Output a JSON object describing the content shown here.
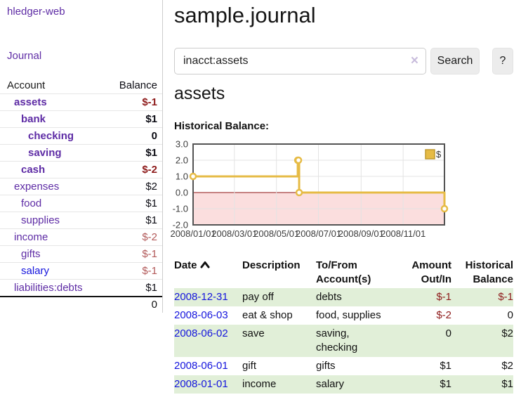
{
  "colors": {
    "link_purple": "#5e2ca5",
    "link_blue": "#1414dd",
    "negative_red": "#8e1b1b",
    "row_green": "#e1efd8",
    "series_gold": "#e6bb45",
    "legend_border_gold": "#bf992f",
    "pink_region": "#fbdede",
    "zero_line": "#8f1515",
    "grid_line": "#e3e3e3",
    "plot_border": "#545454"
  },
  "sidebar": {
    "brand": "hledger-web",
    "journal_link": "Journal",
    "accounts_table": {
      "account_header": "Account",
      "balance_header": "Balance",
      "rows": [
        {
          "name": "assets",
          "balance": "$-1",
          "level": 1,
          "bold": true,
          "negative": true,
          "blue": false
        },
        {
          "name": "bank",
          "balance": "$1",
          "level": 2,
          "bold": true,
          "negative": false,
          "blue": false
        },
        {
          "name": "checking",
          "balance": "0",
          "level": 3,
          "bold": true,
          "negative": false,
          "blue": false
        },
        {
          "name": "saving",
          "balance": "$1",
          "level": 3,
          "bold": true,
          "negative": false,
          "blue": false
        },
        {
          "name": "cash",
          "balance": "$-2",
          "level": 2,
          "bold": true,
          "negative": true,
          "blue": false
        },
        {
          "name": "expenses",
          "balance": "$2",
          "level": 1,
          "bold": false,
          "negative": false,
          "blue": false
        },
        {
          "name": "food",
          "balance": "$1",
          "level": 2,
          "bold": false,
          "negative": false,
          "blue": false
        },
        {
          "name": "supplies",
          "balance": "$1",
          "level": 2,
          "bold": false,
          "negative": false,
          "blue": false
        },
        {
          "name": "income",
          "balance": "$-2",
          "level": 1,
          "bold": false,
          "negative": true,
          "blue": false
        },
        {
          "name": "gifts",
          "balance": "$-1",
          "level": 2,
          "bold": false,
          "negative": true,
          "blue": false
        },
        {
          "name": "salary",
          "balance": "$-1",
          "level": 2,
          "bold": false,
          "negative": true,
          "blue": true
        },
        {
          "name": "liabilities:debts",
          "balance": "$1",
          "level": 1,
          "bold": false,
          "negative": false,
          "blue": false
        }
      ],
      "total": "0"
    }
  },
  "main": {
    "title": "sample.journal",
    "search": {
      "value": "inacct:assets",
      "clear_label": "×",
      "search_button": "Search",
      "help_button": "?"
    },
    "account_title": "assets",
    "chart_heading": "Historical Balance:"
  },
  "chart_data": {
    "type": "line",
    "step": true,
    "title": "Historical Balance:",
    "legend": {
      "label": "$",
      "position": "top-right"
    },
    "x": {
      "start_date": "2008-01-01",
      "end_date": "2008-12-31",
      "range_days": 365,
      "tick_labels": [
        "2008/01/01",
        "2008/03/01",
        "2008/05/01",
        "2008/07/01",
        "2008/09/01",
        "2008/11/01"
      ],
      "tick_days": [
        0,
        60,
        121,
        182,
        244,
        305
      ]
    },
    "y": {
      "min": -2,
      "max": 3,
      "tick_labels": [
        "3.0",
        "2.0",
        "1.0",
        "0.0",
        "-1.0",
        "-2.0"
      ],
      "tick_values": [
        3,
        2,
        1,
        0,
        -1,
        -2
      ]
    },
    "series": [
      {
        "name": "$",
        "points": [
          {
            "date": "2008-01-01",
            "day": 0,
            "value": 1
          },
          {
            "date": "2008-06-01",
            "day": 152,
            "value": 2
          },
          {
            "date": "2008-06-02",
            "day": 153,
            "value": 2
          },
          {
            "date": "2008-06-03",
            "day": 154,
            "value": 0
          },
          {
            "date": "2008-12-31",
            "day": 365,
            "value": -1
          }
        ]
      }
    ]
  },
  "register": {
    "headers": {
      "date": "Date",
      "description": "Description",
      "accounts": "To/From\nAccount(s)",
      "amount": "Amount\nOut/In",
      "balance": "Historical\nBalance"
    },
    "rows": [
      {
        "date": "2008-12-31",
        "description": "pay off",
        "accounts": [
          "debts"
        ],
        "amount": "$-1",
        "amount_negative": true,
        "balance": "$-1",
        "balance_negative": true,
        "shaded": true
      },
      {
        "date": "2008-06-03",
        "description": "eat & shop",
        "accounts": [
          "food, supplies"
        ],
        "amount": "$-2",
        "amount_negative": true,
        "balance": "0",
        "balance_negative": false,
        "shaded": false
      },
      {
        "date": "2008-06-02",
        "description": "save",
        "accounts": [
          "saving,",
          "checking"
        ],
        "amount": "0",
        "amount_negative": false,
        "balance": "$2",
        "balance_negative": false,
        "shaded": true
      },
      {
        "date": "2008-06-01",
        "description": "gift",
        "accounts": [
          "gifts"
        ],
        "amount": "$1",
        "amount_negative": false,
        "balance": "$2",
        "balance_negative": false,
        "shaded": false
      },
      {
        "date": "2008-01-01",
        "description": "income",
        "accounts": [
          "salary"
        ],
        "amount": "$1",
        "amount_negative": false,
        "balance": "$1",
        "balance_negative": false,
        "shaded": true
      }
    ]
  }
}
